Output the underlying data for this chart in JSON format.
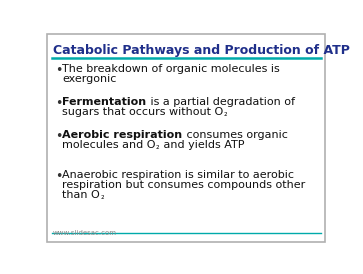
{
  "title": "Catabolic Pathways and Production of ATP",
  "title_color": "#1F2F8A",
  "title_fontsize": 9.0,
  "background_color": "#FFFFFF",
  "border_color": "#B0B0B0",
  "line_color_top": "#00AAAA",
  "line_color_bottom": "#00AAAA",
  "footer_text": "www.slidesac.com",
  "footer_color": "#888888",
  "footer_fontsize": 5.0,
  "bullet_color": "#333333",
  "body_fontsize": 8.0,
  "body_color": "#111111",
  "bullet_points": [
    {
      "lines": [
        [
          {
            "text": "The breakdown of organic molecules is",
            "bold": false
          }
        ],
        [
          {
            "text": "exergonic",
            "bold": false
          }
        ]
      ]
    },
    {
      "lines": [
        [
          {
            "text": "Fermentation",
            "bold": true
          },
          {
            "text": " is a partial degradation of",
            "bold": false
          }
        ],
        [
          {
            "text": "sugars that occurs without O",
            "bold": false
          },
          {
            "text": "₂",
            "bold": false,
            "sub": true
          }
        ]
      ]
    },
    {
      "lines": [
        [
          {
            "text": "Aerobic respiration",
            "bold": true
          },
          {
            "text": " consumes organic",
            "bold": false
          }
        ],
        [
          {
            "text": "molecules and O",
            "bold": false
          },
          {
            "text": "₂",
            "bold": false,
            "sub": true
          },
          {
            "text": " and yields ATP",
            "bold": false
          }
        ]
      ]
    },
    {
      "lines": [
        [
          {
            "text": "Anaerobic respiration is similar to aerobic",
            "bold": false
          }
        ],
        [
          {
            "text": "respiration but consumes compounds other",
            "bold": false
          }
        ],
        [
          {
            "text": "than O",
            "bold": false
          },
          {
            "text": "₂",
            "bold": false,
            "sub": true
          }
        ]
      ]
    }
  ]
}
